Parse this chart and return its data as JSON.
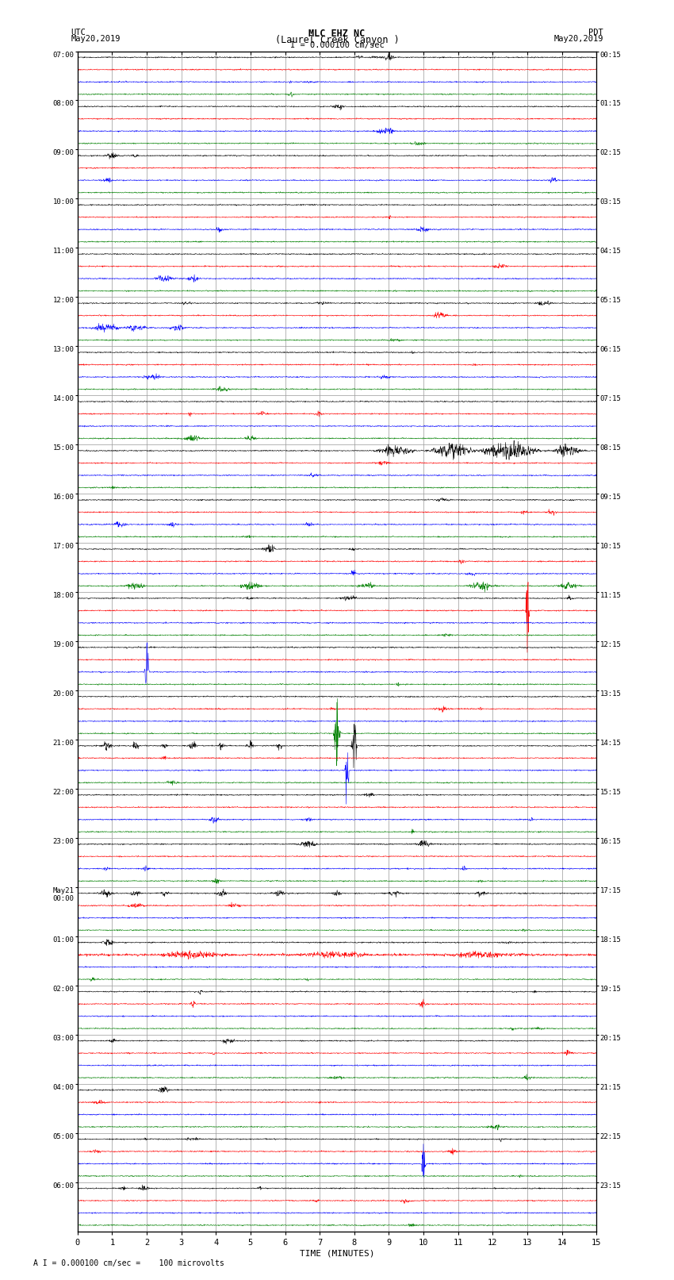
{
  "title_line1": "MLC EHZ NC",
  "title_line2": "(Laurel Creek Canyon )",
  "title_line3": "I = 0.000100 cm/sec",
  "label_utc": "UTC",
  "label_date_left": "May20,2019",
  "label_pdt": "PDT",
  "label_date_right": "May20,2019",
  "xlabel": "TIME (MINUTES)",
  "footer": "A I = 0.000100 cm/sec =    100 microvolts",
  "xlim": [
    0,
    15
  ],
  "xticks": [
    0,
    1,
    2,
    3,
    4,
    5,
    6,
    7,
    8,
    9,
    10,
    11,
    12,
    13,
    14,
    15
  ],
  "bg_color": "#ffffff",
  "grid_color": "#999999",
  "trace_colors": [
    "black",
    "red",
    "blue",
    "green"
  ],
  "n_rows": 24,
  "traces_per_row": 4,
  "utc_labels": [
    "07:00",
    "",
    "",
    "",
    "08:00",
    "",
    "",
    "",
    "09:00",
    "",
    "",
    "",
    "10:00",
    "",
    "",
    "",
    "11:00",
    "",
    "",
    "",
    "12:00",
    "",
    "",
    "",
    "13:00",
    "",
    "",
    "",
    "14:00",
    "",
    "",
    "",
    "15:00",
    "",
    "",
    "",
    "16:00",
    "",
    "",
    "",
    "17:00",
    "",
    "",
    "",
    "18:00",
    "",
    "",
    "",
    "19:00",
    "",
    "",
    "",
    "20:00",
    "",
    "",
    "",
    "21:00",
    "",
    "",
    "",
    "22:00",
    "",
    "",
    "",
    "23:00",
    "",
    "",
    "",
    "May21\n00:00",
    "",
    "",
    "",
    "01:00",
    "",
    "",
    "",
    "02:00",
    "",
    "",
    "",
    "03:00",
    "",
    "",
    "",
    "04:00",
    "",
    "",
    "",
    "05:00",
    "",
    "",
    "",
    "06:00",
    "",
    "",
    ""
  ],
  "pdt_labels": [
    "00:15",
    "",
    "",
    "",
    "01:15",
    "",
    "",
    "",
    "02:15",
    "",
    "",
    "",
    "03:15",
    "",
    "",
    "",
    "04:15",
    "",
    "",
    "",
    "05:15",
    "",
    "",
    "",
    "06:15",
    "",
    "",
    "",
    "07:15",
    "",
    "",
    "",
    "08:15",
    "",
    "",
    "",
    "09:15",
    "",
    "",
    "",
    "10:15",
    "",
    "",
    "",
    "11:15",
    "",
    "",
    "",
    "12:15",
    "",
    "",
    "",
    "13:15",
    "",
    "",
    "",
    "14:15",
    "",
    "",
    "",
    "15:15",
    "",
    "",
    "",
    "16:15",
    "",
    "",
    "",
    "17:15",
    "",
    "",
    "",
    "18:15",
    "",
    "",
    "",
    "19:15",
    "",
    "",
    "",
    "20:15",
    "",
    "",
    "",
    "21:15",
    "",
    "",
    "",
    "22:15",
    "",
    "",
    "",
    "23:15",
    "",
    "",
    ""
  ]
}
